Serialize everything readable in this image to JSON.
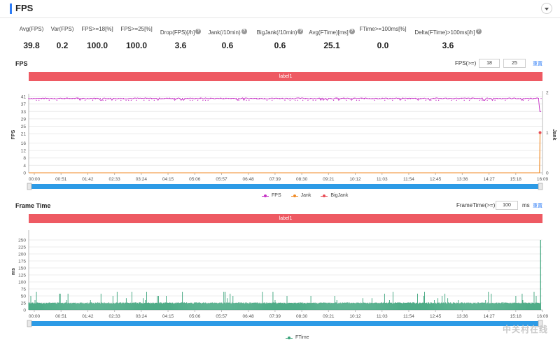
{
  "header": {
    "title": "FPS"
  },
  "stats": [
    {
      "label": "Avg(FPS)",
      "value": "39.8",
      "help": false
    },
    {
      "label": "Var(FPS)",
      "value": "0.2",
      "help": false
    },
    {
      "label": "FPS>=18[%]",
      "value": "100.0",
      "help": false
    },
    {
      "label": "FPS>=25[%]",
      "value": "100.0",
      "help": false
    },
    {
      "label": "Drop(FPS)[/h]",
      "value": "3.6",
      "help": true
    },
    {
      "label": "Jank(/10min)",
      "value": "0.6",
      "help": true
    },
    {
      "label": "BigJank(/10min)",
      "value": "0.6",
      "help": true
    },
    {
      "label": "Avg(FTime)[ms]",
      "value": "25.1",
      "help": true
    },
    {
      "label": "FTime>=100ms[%]",
      "value": "0.0",
      "help": false
    },
    {
      "label": "Delta(FTime)>100ms[/h]",
      "value": "3.6",
      "help": true
    }
  ],
  "fps_section": {
    "title": "FPS",
    "threshold_label": "FPS(>=)",
    "threshold_1": "18",
    "threshold_2": "25",
    "reset_label": "重置",
    "label_bar": "label1",
    "legend": [
      {
        "name": "FPS",
        "color": "#c42fc4"
      },
      {
        "name": "Jank",
        "color": "#f08a24"
      },
      {
        "name": "BigJank",
        "color": "#e84b55"
      }
    ]
  },
  "ftime_section": {
    "title": "Frame Time",
    "threshold_label": "FrameTime(>=)",
    "threshold": "100",
    "unit": "ms",
    "reset_label": "重置",
    "label_bar": "label1",
    "legend": [
      {
        "name": "FTime",
        "color": "#3aa37a"
      }
    ]
  },
  "watermark": "中关村在线",
  "chart_data": [
    {
      "type": "line",
      "title": "FPS",
      "xlabel": "",
      "ylabel": "FPS",
      "y2label": "Jank",
      "x_ticks": [
        "00:00",
        "00:51",
        "01:42",
        "02:33",
        "03:24",
        "04:15",
        "05:06",
        "05:57",
        "06:48",
        "07:39",
        "08:30",
        "09:21",
        "10:12",
        "11:03",
        "11:54",
        "12:45",
        "13:36",
        "14:27",
        "15:18",
        "16:09"
      ],
      "y_ticks": [
        0,
        4,
        8,
        12,
        16,
        21,
        25,
        29,
        33,
        37,
        41
      ],
      "y2_ticks": [
        0,
        1,
        2
      ],
      "ylim": [
        0,
        41
      ],
      "y2lim": [
        0,
        2
      ],
      "x_range_seconds": [
        0,
        1000
      ],
      "series": [
        {
          "name": "FPS",
          "color": "#c42fc4",
          "baseline": 40,
          "drops": [
            {
              "t": 998,
              "value": 33
            }
          ]
        },
        {
          "name": "Jank",
          "color": "#f08a24",
          "points": [
            {
              "t": 0,
              "value": 0
            },
            {
              "t": 997,
              "value": 0
            },
            {
              "t": 998,
              "value": 1
            }
          ]
        },
        {
          "name": "BigJank",
          "color": "#e84b55",
          "points": [
            {
              "t": 998,
              "value": 1
            }
          ]
        }
      ],
      "legend": "bottom",
      "grid": true
    },
    {
      "type": "bar",
      "title": "Frame Time",
      "xlabel": "",
      "ylabel": "ms",
      "x_ticks": [
        "00:00",
        "00:51",
        "01:42",
        "02:33",
        "03:24",
        "04:15",
        "05:06",
        "05:57",
        "06:48",
        "07:39",
        "08:30",
        "09:21",
        "10:12",
        "11:03",
        "11:54",
        "12:45",
        "13:36",
        "14:27",
        "15:18",
        "16:09"
      ],
      "y_ticks": [
        0,
        25,
        50,
        75,
        100,
        125,
        150,
        175,
        200,
        225,
        250
      ],
      "ylim": [
        0,
        275
      ],
      "x_range_seconds": [
        0,
        1000
      ],
      "series": [
        {
          "name": "FTime",
          "color": "#3aa37a",
          "typical_ms": 25,
          "spikes_ms": [
            35,
            42,
            50,
            58,
            65
          ],
          "max_spike": {
            "t": 999,
            "value": 250
          }
        }
      ],
      "legend": "bottom",
      "grid": true
    }
  ]
}
